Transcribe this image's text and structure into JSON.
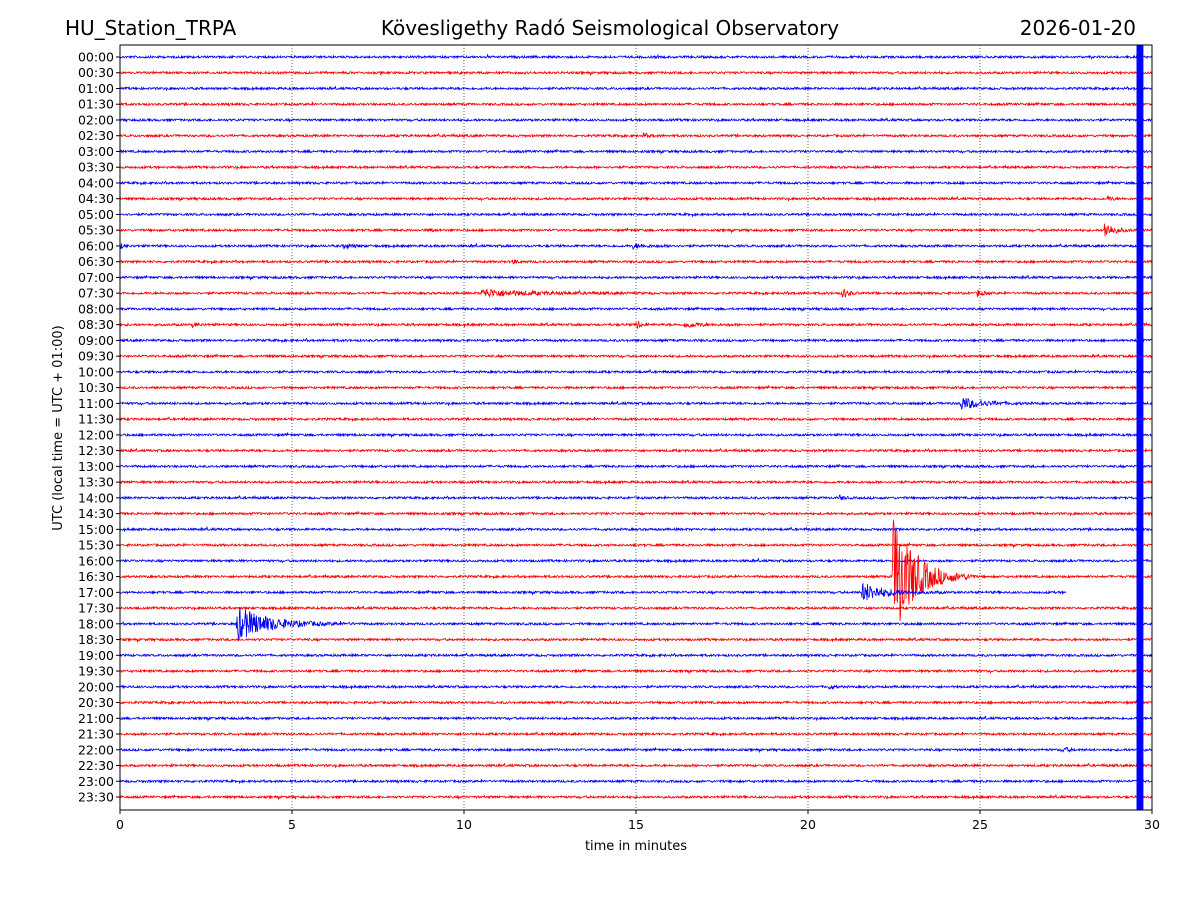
{
  "chart_data": {
    "type": "line",
    "subtype": "helicorder",
    "title_left": "HU_Station_TRPA",
    "title": "Kövesligethy Radó Seismological Observatory",
    "title_right": "2026-01-20",
    "xlabel": "time in minutes",
    "ylabel": "UTC (local time = UTC + 01:00)",
    "xlim": [
      0,
      30
    ],
    "xticks": [
      0,
      5,
      10,
      15,
      20,
      25,
      30
    ],
    "grid": "vertical dotted",
    "colors": [
      "#0000ff",
      "#ff0000"
    ],
    "traces": [
      "00:00",
      "00:30",
      "01:00",
      "01:30",
      "02:00",
      "02:30",
      "03:00",
      "03:30",
      "04:00",
      "04:30",
      "05:00",
      "05:30",
      "06:00",
      "06:30",
      "07:00",
      "07:30",
      "08:00",
      "08:30",
      "09:00",
      "09:30",
      "10:00",
      "10:30",
      "11:00",
      "11:30",
      "12:00",
      "12:30",
      "13:00",
      "13:30",
      "14:00",
      "14:30",
      "15:00",
      "15:30",
      "16:00",
      "16:30",
      "17:00",
      "17:30",
      "18:00",
      "18:30",
      "19:00",
      "19:30",
      "20:00",
      "20:30",
      "21:00",
      "21:30",
      "22:00",
      "22:30",
      "23:00",
      "23:30"
    ],
    "trace_end": {
      "17:00": 27.5
    },
    "saturated_band_minutes": [
      29.55,
      29.75
    ],
    "events": [
      {
        "trace": "02:30",
        "start": 15.2,
        "duration": 0.6,
        "amplitude": 2.5
      },
      {
        "trace": "04:30",
        "start": 28.7,
        "duration": 0.6,
        "amplitude": 2.5
      },
      {
        "trace": "05:30",
        "start": 9.0,
        "duration": 0.5,
        "amplitude": 2
      },
      {
        "trace": "05:30",
        "start": 28.6,
        "duration": 1.0,
        "amplitude": 9
      },
      {
        "trace": "06:00",
        "start": 0.0,
        "duration": 0.5,
        "amplitude": 2.5
      },
      {
        "trace": "06:00",
        "start": 6.5,
        "duration": 1.0,
        "amplitude": 2.5
      },
      {
        "trace": "06:00",
        "start": 14.9,
        "duration": 1.2,
        "amplitude": 2.5
      },
      {
        "trace": "06:30",
        "start": 11.4,
        "duration": 0.5,
        "amplitude": 2.5
      },
      {
        "trace": "07:30",
        "start": 10.5,
        "duration": 5.0,
        "amplitude": 4
      },
      {
        "trace": "07:30",
        "start": 21.0,
        "duration": 0.6,
        "amplitude": 6
      },
      {
        "trace": "07:30",
        "start": 24.9,
        "duration": 0.6,
        "amplitude": 4
      },
      {
        "trace": "08:30",
        "start": 2.1,
        "duration": 0.6,
        "amplitude": 2.5
      },
      {
        "trace": "08:30",
        "start": 15.0,
        "duration": 0.4,
        "amplitude": 6
      },
      {
        "trace": "08:30",
        "start": 16.4,
        "duration": 1.6,
        "amplitude": 3
      },
      {
        "trace": "11:00",
        "start": 24.4,
        "duration": 2.2,
        "amplitude": 7
      },
      {
        "trace": "14:00",
        "start": 20.9,
        "duration": 0.5,
        "amplitude": 2.5
      },
      {
        "trace": "16:30",
        "start": 22.45,
        "duration": 2.4,
        "amplitude": 70
      },
      {
        "trace": "17:00",
        "start": 21.55,
        "duration": 2.5,
        "amplitude": 10
      },
      {
        "trace": "18:00",
        "start": 3.38,
        "duration": 3.5,
        "amplitude": 18
      },
      {
        "trace": "20:00",
        "start": 20.6,
        "duration": 0.5,
        "amplitude": 2.5
      },
      {
        "trace": "22:00",
        "start": 27.4,
        "duration": 0.6,
        "amplitude": 3
      }
    ]
  }
}
